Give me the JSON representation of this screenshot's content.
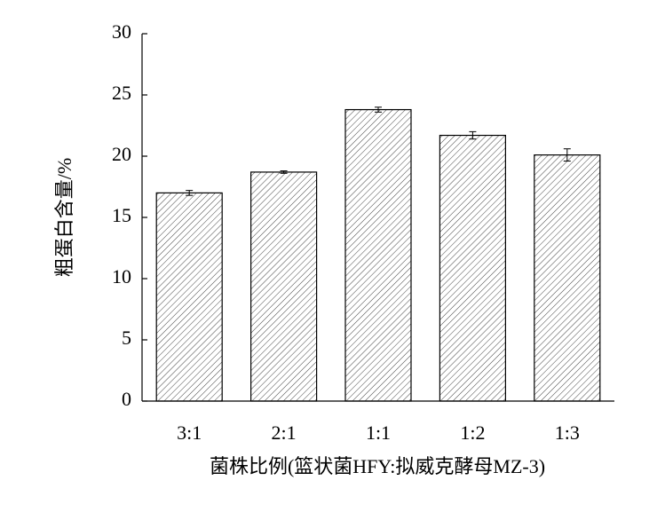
{
  "chart_data": {
    "type": "bar",
    "ylabel": "粗蛋白含量/%",
    "xlabel": "菌株比例(篮状菌HFY:拟威克酵母MZ-3)",
    "categories": [
      "3:1",
      "2:1",
      "1:1",
      "1:2",
      "1:3"
    ],
    "values": [
      17.0,
      18.7,
      23.8,
      21.7,
      20.1
    ],
    "errors": [
      0.2,
      0.1,
      0.2,
      0.3,
      0.5
    ],
    "color": "#000000",
    "ylim": [
      0,
      30
    ],
    "yticks": [
      0,
      5,
      10,
      15,
      20,
      25,
      30
    ]
  }
}
